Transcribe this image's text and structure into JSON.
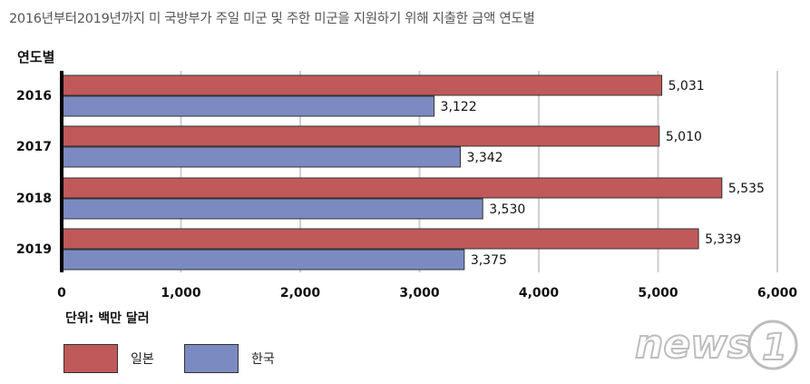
{
  "title": "2016년부터2019년까지 미 국방부가 주일 미군 및 주한 미군을 지원하기 위해 지출한 금액 연도별",
  "category_axis_label": "연도별",
  "unit_label": "단위: 백만 달러",
  "logo_text": "news1",
  "colors": {
    "japan": "#c0595a",
    "korea": "#7b8bc1"
  },
  "chart_data": {
    "type": "bar",
    "orientation": "horizontal",
    "categories": [
      "2016",
      "2017",
      "2018",
      "2019"
    ],
    "series": [
      {
        "name": "일본",
        "values": [
          5031,
          5010,
          5535,
          5339
        ]
      },
      {
        "name": "한국",
        "values": [
          3122,
          3342,
          3530,
          3375
        ]
      }
    ],
    "data_labels": [
      [
        "5,031",
        "5,010",
        "5,535",
        "5,339"
      ],
      [
        "3,122",
        "3,342",
        "3,530",
        "3,375"
      ]
    ],
    "xlim": [
      0,
      6000
    ],
    "xticks": [
      "0",
      "1,000",
      "2,000",
      "3,000",
      "4,000",
      "5,000",
      "6,000"
    ],
    "grid": true,
    "legend_position": "bottom-left"
  }
}
